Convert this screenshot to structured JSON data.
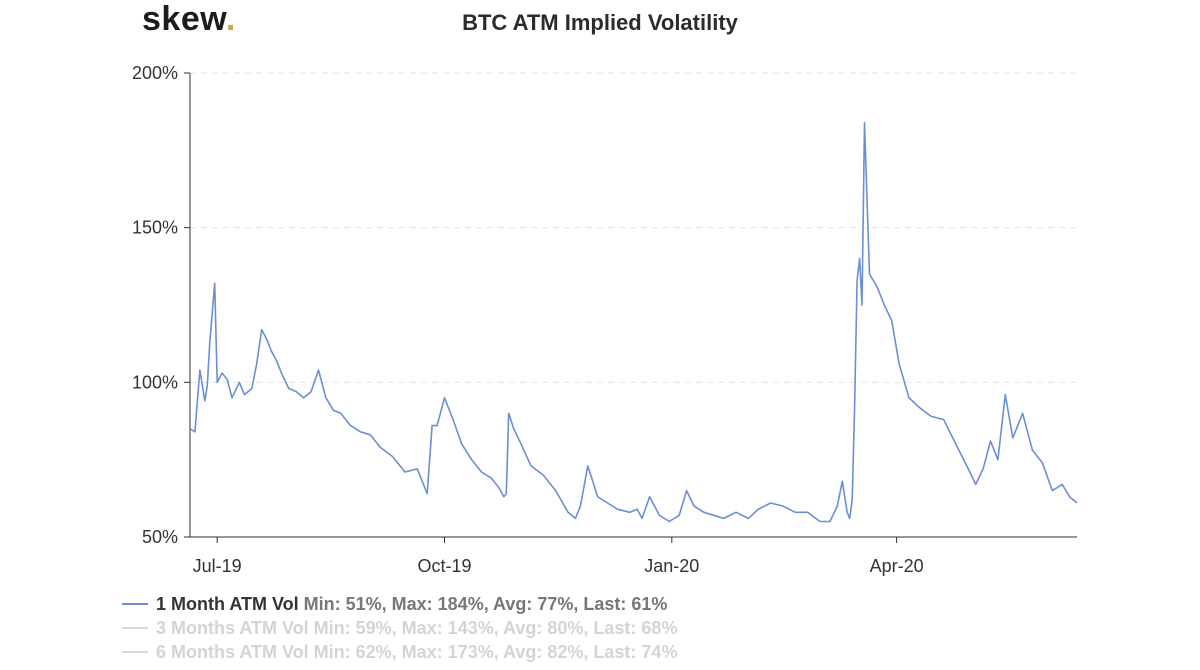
{
  "brand": {
    "name": "skew",
    "dot": "."
  },
  "chart_data": {
    "type": "line",
    "title": "BTC ATM Implied Volatility",
    "xlabel": "",
    "ylabel": "",
    "ylim": [
      50,
      200
    ],
    "yticks": [
      50,
      100,
      150,
      200
    ],
    "ytick_labels": [
      "50%",
      "100%",
      "150%",
      "200%"
    ],
    "grid": true,
    "x_range": [
      "2019-06-20",
      "2020-06-13"
    ],
    "xticks": [
      {
        "label": "Jul-19",
        "date": "2019-07-01"
      },
      {
        "label": "Oct-19",
        "date": "2019-10-01"
      },
      {
        "label": "Jan-20",
        "date": "2020-01-01"
      },
      {
        "label": "Apr-20",
        "date": "2020-04-01"
      }
    ],
    "series": [
      {
        "name": "1 Month ATM Vol",
        "stats": "Min: 51%, Max: 184%, Avg: 77%, Last: 61%",
        "color": "#6b8fd4",
        "visible": true,
        "x": [
          "2019-06-20",
          "2019-06-22",
          "2019-06-24",
          "2019-06-26",
          "2019-06-27",
          "2019-06-28",
          "2019-06-30",
          "2019-07-01",
          "2019-07-03",
          "2019-07-05",
          "2019-07-07",
          "2019-07-10",
          "2019-07-12",
          "2019-07-15",
          "2019-07-17",
          "2019-07-19",
          "2019-07-21",
          "2019-07-23",
          "2019-07-25",
          "2019-07-27",
          "2019-07-30",
          "2019-08-02",
          "2019-08-05",
          "2019-08-08",
          "2019-08-11",
          "2019-08-14",
          "2019-08-17",
          "2019-08-20",
          "2019-08-24",
          "2019-08-28",
          "2019-09-01",
          "2019-09-05",
          "2019-09-10",
          "2019-09-15",
          "2019-09-20",
          "2019-09-24",
          "2019-09-26",
          "2019-09-28",
          "2019-10-01",
          "2019-10-04",
          "2019-10-08",
          "2019-10-12",
          "2019-10-16",
          "2019-10-20",
          "2019-10-23",
          "2019-10-25",
          "2019-10-26",
          "2019-10-27",
          "2019-10-29",
          "2019-11-01",
          "2019-11-05",
          "2019-11-10",
          "2019-11-15",
          "2019-11-20",
          "2019-11-23",
          "2019-11-25",
          "2019-11-28",
          "2019-12-02",
          "2019-12-06",
          "2019-12-10",
          "2019-12-15",
          "2019-12-18",
          "2019-12-20",
          "2019-12-23",
          "2019-12-27",
          "2019-12-31",
          "2020-01-04",
          "2020-01-07",
          "2020-01-10",
          "2020-01-14",
          "2020-01-18",
          "2020-01-22",
          "2020-01-27",
          "2020-02-01",
          "2020-02-05",
          "2020-02-10",
          "2020-02-15",
          "2020-02-20",
          "2020-02-25",
          "2020-03-01",
          "2020-03-05",
          "2020-03-08",
          "2020-03-10",
          "2020-03-12",
          "2020-03-13",
          "2020-03-14",
          "2020-03-15",
          "2020-03-16",
          "2020-03-17",
          "2020-03-18",
          "2020-03-19",
          "2020-03-21",
          "2020-03-24",
          "2020-03-27",
          "2020-03-30",
          "2020-04-02",
          "2020-04-06",
          "2020-04-10",
          "2020-04-15",
          "2020-04-20",
          "2020-04-25",
          "2020-04-30",
          "2020-05-03",
          "2020-05-06",
          "2020-05-09",
          "2020-05-12",
          "2020-05-15",
          "2020-05-18",
          "2020-05-22",
          "2020-05-26",
          "2020-05-30",
          "2020-06-03",
          "2020-06-07",
          "2020-06-10",
          "2020-06-13"
        ],
        "values": [
          85,
          84,
          104,
          94,
          99,
          113,
          132,
          100,
          103,
          101,
          95,
          100,
          96,
          98,
          106,
          117,
          114,
          110,
          107,
          103,
          98,
          97,
          95,
          97,
          104,
          95,
          91,
          90,
          86,
          84,
          83,
          79,
          76,
          71,
          72,
          64,
          86,
          86,
          95,
          89,
          80,
          75,
          71,
          69,
          66,
          63,
          64,
          90,
          85,
          80,
          73,
          70,
          65,
          58,
          56,
          60,
          73,
          63,
          61,
          59,
          58,
          59,
          56,
          63,
          57,
          55,
          57,
          65,
          60,
          58,
          57,
          56,
          58,
          56,
          59,
          61,
          60,
          58,
          58,
          55,
          55,
          60,
          68,
          58,
          56,
          62,
          92,
          133,
          140,
          125,
          184,
          135,
          131,
          125,
          120,
          106,
          95,
          92,
          89,
          88,
          80,
          72,
          67,
          72,
          81,
          75,
          96,
          82,
          90,
          78,
          74,
          65,
          67,
          63,
          61
        ]
      },
      {
        "name": "3 Months ATM Vol",
        "stats": "Min: 59%, Max: 143%, Avg: 80%, Last: 68%",
        "color": "#d9d9d9",
        "visible": false
      },
      {
        "name": "6 Months ATM Vol",
        "stats": "Min: 62%, Max: 173%, Avg: 82%, Last: 74%",
        "color": "#d9d9d9",
        "visible": false
      }
    ]
  }
}
